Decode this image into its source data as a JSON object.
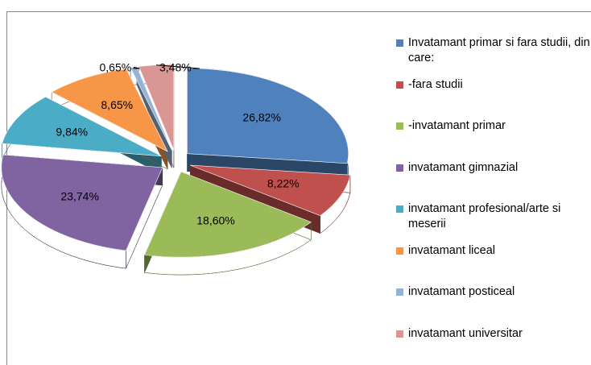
{
  "chart_data": {
    "type": "pie",
    "style": "3d-exploded",
    "categories": [
      "Invatamant primar si fara studii, din care:",
      "-fara studii",
      "-invatamant primar",
      "invatamant gimnazial",
      "invatamant profesional/arte si meserii",
      "invatamant liceal",
      "invatamant posticeal",
      "invatamant universitar"
    ],
    "values": [
      26.82,
      8.22,
      18.6,
      23.74,
      9.84,
      8.65,
      0.65,
      3.48
    ],
    "value_labels": [
      "26,82%",
      "8,22%",
      "18,60%",
      "23,74%",
      "9,84%",
      "8,65%",
      "0,65%",
      "3,48%"
    ],
    "colors": [
      "#4f81bd",
      "#c0504d",
      "#9bbb59",
      "#8064a2",
      "#4bacc6",
      "#f79646",
      "#95b3d7",
      "#d99694"
    ],
    "legend": "right"
  }
}
